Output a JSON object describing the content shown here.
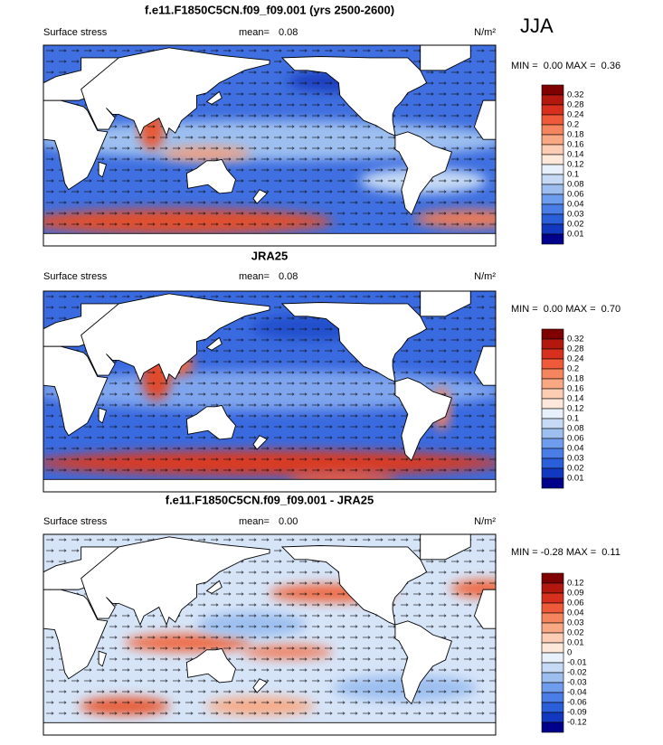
{
  "header": {
    "season": "JJA"
  },
  "panels": [
    {
      "title": "f.e11.F1850C5CN.f09_f09.001 (yrs 2500-2600)",
      "variable": "Surface stress",
      "mean_label": "mean=",
      "mean": "0.08",
      "units": "N/m²",
      "min_max": "MIN =  0.00 MAX =  0.36",
      "colorbar": {
        "labels": [
          "0.32",
          "0.28",
          "0.24",
          "0.2",
          "0.18",
          "0.16",
          "0.14",
          "0.12",
          "0.1",
          "0.08",
          "0.06",
          "0.04",
          "0.03",
          "0.02",
          "0.01"
        ],
        "colors": [
          "#7f0000",
          "#b2180e",
          "#d7301f",
          "#ef5a3a",
          "#f4855f",
          "#f8a984",
          "#fbcdb2",
          "#fde8da",
          "#e8f0fb",
          "#c6daf5",
          "#9dbff0",
          "#6f9ded",
          "#4a7ee6",
          "#2b5fd9",
          "#1238c0",
          "#00008b"
        ]
      }
    },
    {
      "title": "JRA25",
      "variable": "Surface stress",
      "mean_label": "mean=",
      "mean": "0.08",
      "units": "N/m²",
      "min_max": "MIN =  0.00 MAX =  0.70",
      "colorbar": {
        "labels": [
          "0.32",
          "0.28",
          "0.24",
          "0.2",
          "0.18",
          "0.16",
          "0.14",
          "0.12",
          "0.1",
          "0.08",
          "0.06",
          "0.04",
          "0.03",
          "0.02",
          "0.01"
        ],
        "colors": [
          "#7f0000",
          "#b2180e",
          "#d7301f",
          "#ef5a3a",
          "#f4855f",
          "#f8a984",
          "#fbcdb2",
          "#fde8da",
          "#e8f0fb",
          "#c6daf5",
          "#9dbff0",
          "#6f9ded",
          "#4a7ee6",
          "#2b5fd9",
          "#1238c0",
          "#00008b"
        ]
      }
    },
    {
      "title": "f.e11.F1850C5CN.f09_f09.001 - JRA25",
      "variable": "Surface stress",
      "mean_label": "mean=",
      "mean": "0.00",
      "units": "N/m²",
      "min_max": "MIN = -0.28 MAX =  0.11",
      "colorbar": {
        "labels": [
          "0.12",
          "0.09",
          "0.06",
          "0.04",
          "0.03",
          "0.02",
          "0.01",
          "0",
          "-0.01",
          "-0.02",
          "-0.03",
          "-0.04",
          "-0.06",
          "-0.09",
          "-0.12"
        ],
        "colors": [
          "#7f0000",
          "#b2180e",
          "#d7301f",
          "#ef5a3a",
          "#f4855f",
          "#f8a984",
          "#fbcdb2",
          "#fde8da",
          "#e8f0fb",
          "#c6daf5",
          "#9dbff0",
          "#6f9ded",
          "#4a7ee6",
          "#2b5fd9",
          "#1238c0",
          "#00008b"
        ]
      }
    }
  ]
}
